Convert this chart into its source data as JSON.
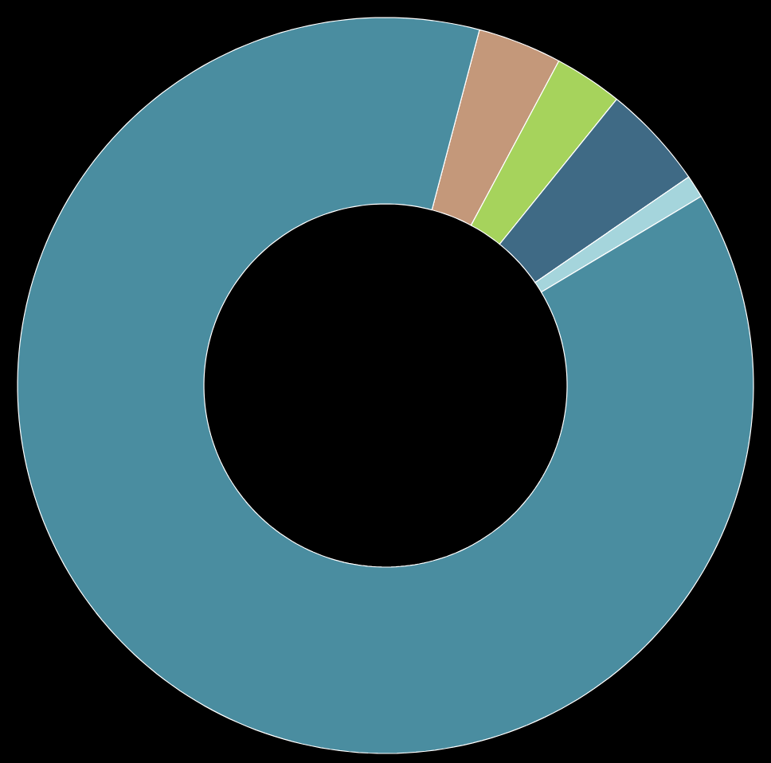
{
  "chart_data": {
    "type": "donut",
    "categories": [
      null,
      null,
      null,
      null,
      null
    ],
    "values": [
      3.7,
      3.0,
      4.6,
      1.0,
      87.7
    ],
    "colors": [
      "#c4987a",
      "#a6d35c",
      "#3f6a85",
      "#a5d5dc",
      "#4a8da0"
    ]
  }
}
